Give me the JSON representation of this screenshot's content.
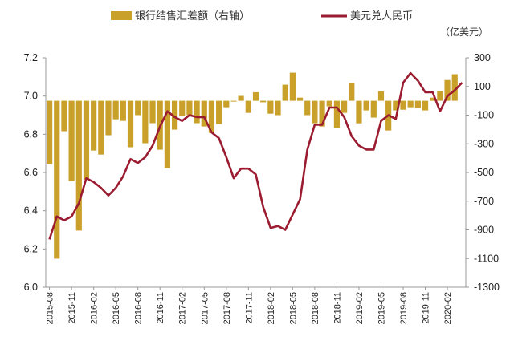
{
  "chart_data": {
    "type": "bar+line",
    "legend": [
      "银行结售汇差额（右轴）",
      "美元兑人民币"
    ],
    "legend_placement": "top",
    "unit_right": "（亿美元）",
    "colors": {
      "bar": "#C8A02A",
      "line": "#9B1B30",
      "axis": "#999999"
    },
    "left_axis": {
      "ylim": [
        6.0,
        7.2
      ],
      "ticks": [
        "6.0",
        "6.2",
        "6.4",
        "6.6",
        "6.8",
        "7.0",
        "7.2"
      ]
    },
    "right_axis": {
      "ylim": [
        -1300,
        300
      ],
      "ticks": [
        "300",
        "100",
        "-100",
        "-300",
        "-500",
        "-700",
        "-900",
        "-1100",
        "-1300"
      ]
    },
    "x_tick_labels": [
      "2015-08",
      "2015-11",
      "2016-02",
      "2016-05",
      "2016-08",
      "2016-11",
      "2017-02",
      "2017-05",
      "2017-08",
      "2017-11",
      "2018-02",
      "2018-05",
      "2018-08",
      "2018-11",
      "2019-02",
      "2019-05",
      "2019-08",
      "2019-11",
      "2020-02"
    ],
    "n_months": 57,
    "series": [
      {
        "name": "银行结售汇差额（右轴）",
        "type": "bar",
        "axis": "right",
        "values": [
          -442,
          -1101,
          -212,
          -559,
          -905,
          -550,
          -347,
          -375,
          -240,
          -129,
          -140,
          -324,
          -100,
          -296,
          -156,
          -341,
          -470,
          -201,
          -106,
          -100,
          -156,
          -179,
          -224,
          -162,
          -45,
          -5,
          34,
          -84,
          60,
          -10,
          -90,
          -100,
          112,
          196,
          22,
          -100,
          -157,
          -179,
          -39,
          -190,
          -84,
          123,
          -157,
          -67,
          -117,
          67,
          -207,
          -67,
          -62,
          -45,
          -50,
          -67,
          22,
          67,
          145,
          185,
          null
        ]
      },
      {
        "name": "美元兑人民币",
        "type": "line",
        "axis": "left",
        "values": [
          6.25,
          6.37,
          6.35,
          6.37,
          6.44,
          6.57,
          6.55,
          6.52,
          6.48,
          6.52,
          6.58,
          6.67,
          6.65,
          6.68,
          6.74,
          6.84,
          6.92,
          6.89,
          6.87,
          6.9,
          6.89,
          6.89,
          6.81,
          6.78,
          6.68,
          6.57,
          6.62,
          6.62,
          6.59,
          6.42,
          6.31,
          6.32,
          6.3,
          6.38,
          6.46,
          6.72,
          6.85,
          6.85,
          6.94,
          6.94,
          6.89,
          6.79,
          6.74,
          6.72,
          6.72,
          6.87,
          6.9,
          6.88,
          7.07,
          7.12,
          7.08,
          7.02,
          7.02,
          6.92,
          7.0,
          7.03,
          7.07
        ]
      }
    ]
  }
}
